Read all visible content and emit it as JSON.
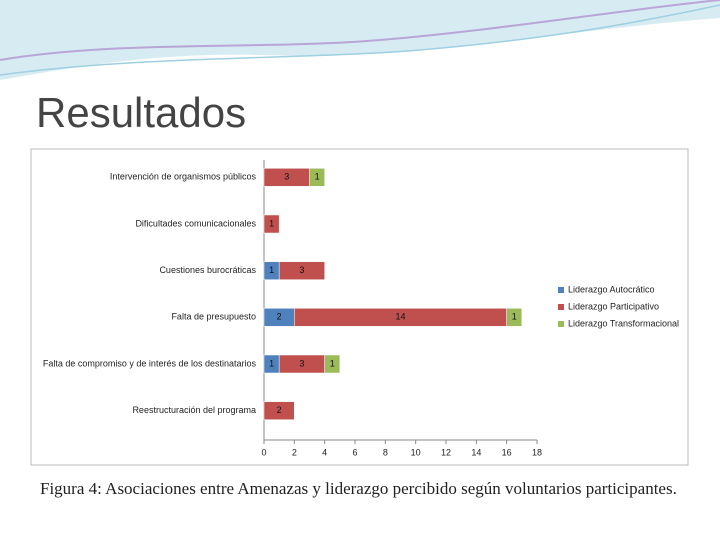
{
  "title": "Resultados",
  "caption": "Figura 4: Asociaciones entre Amenazas y liderazgo percibido según voluntarios participantes.",
  "chart_data": {
    "type": "stacked-bar-horizontal",
    "categories": [
      "Intervención de organismos públicos",
      "Dificultades comunicacionales",
      "Cuestiones burocráticas",
      "Falta de presupuesto",
      "Falta de compromiso y de interés de los destinatarios",
      "Reestructuración del programa"
    ],
    "series": [
      {
        "name": "Liderazgo Autocrático",
        "color": "#4f81bd",
        "values": [
          null,
          null,
          1,
          2,
          1,
          null
        ]
      },
      {
        "name": "Liderazgo Participativo",
        "color": "#c0504d",
        "values": [
          3,
          1,
          3,
          14,
          3,
          2
        ]
      },
      {
        "name": "Liderazgo Transformacional",
        "color": "#9bbb59",
        "values": [
          1,
          null,
          null,
          1,
          1,
          null
        ]
      }
    ],
    "xlim": [
      0,
      18
    ],
    "xticks": [
      0,
      2,
      4,
      6,
      8,
      10,
      12,
      14,
      16,
      18
    ],
    "legend": "right"
  }
}
